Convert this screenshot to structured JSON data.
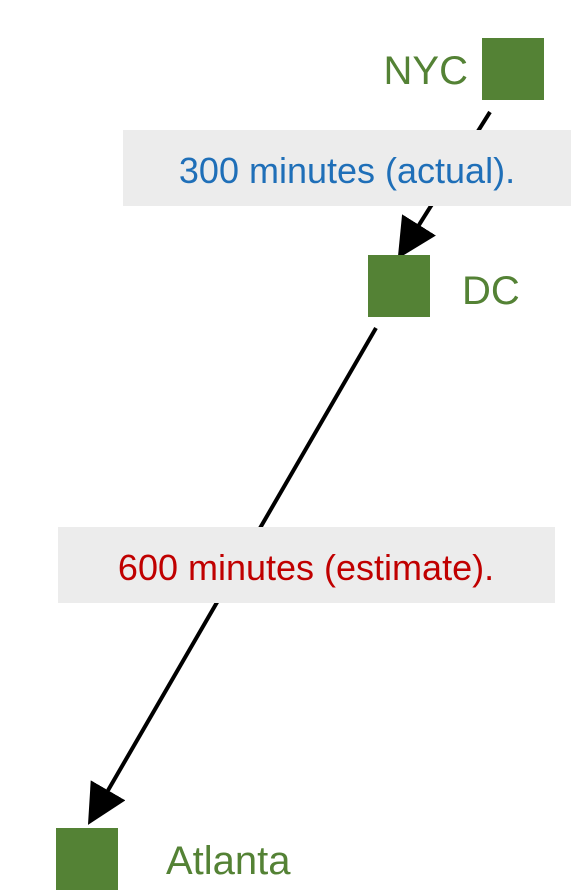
{
  "nodes": {
    "nyc": {
      "label": "NYC"
    },
    "dc": {
      "label": "DC"
    },
    "atlanta": {
      "label": "Atlanta"
    }
  },
  "edges": {
    "nyc_dc": {
      "label": "300 minutes (actual).",
      "color": "#1f6fb8"
    },
    "dc_atlanta": {
      "label": "600 minutes (estimate).",
      "color": "#c00000"
    }
  },
  "colors": {
    "node": "#548235",
    "arrow": "#000000",
    "label_background": "#ececec"
  }
}
